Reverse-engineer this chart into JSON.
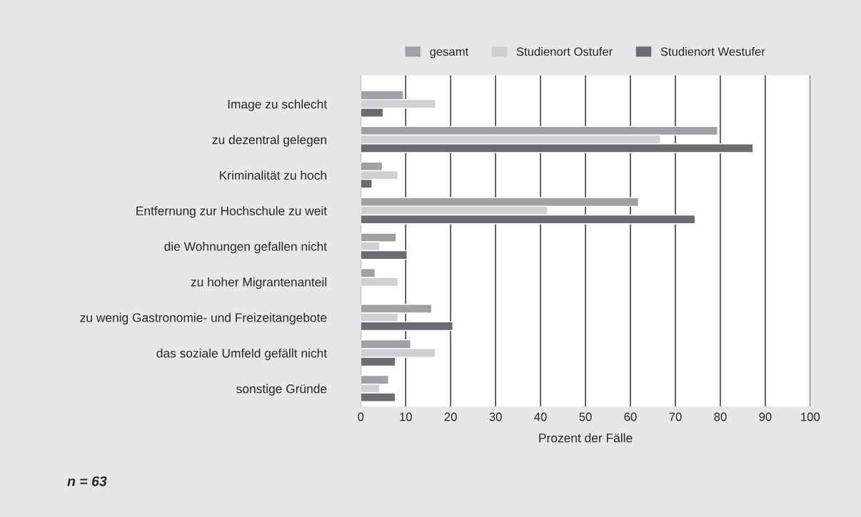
{
  "chart_data": {
    "type": "bar",
    "orientation": "horizontal",
    "categories": [
      "Image zu schlecht",
      "zu dezentral gelegen",
      "Kriminalität zu hoch",
      "Entfernung zur Hochschule zu weit",
      "die Wohnungen gefallen nicht",
      "zu hoher Migrantenanteil",
      "zu wenig Gastronomie- und Freizeitangebote",
      "das soziale Umfeld gefällt nicht",
      "sonstige Gründe"
    ],
    "series": [
      {
        "name": "gesamt",
        "color": "#a0a1a5",
        "values": [
          9.5,
          79.4,
          4.8,
          61.8,
          7.9,
          3.2,
          15.8,
          11.1,
          6.2
        ]
      },
      {
        "name": "Studienort Ostufer",
        "color": "#cfd0d2",
        "values": [
          16.6,
          66.7,
          8.3,
          41.6,
          4.2,
          8.3,
          8.3,
          16.6,
          4.2
        ]
      },
      {
        "name": "Studienort Westufer",
        "color": "#6b6c71",
        "values": [
          5.0,
          87.3,
          2.5,
          74.4,
          10.3,
          null,
          20.5,
          7.7,
          7.7
        ]
      }
    ],
    "xlabel": "Prozent der Fälle",
    "xlim": [
      0,
      100
    ],
    "xticks": [
      0,
      10,
      20,
      30,
      40,
      50,
      60,
      70,
      80,
      90,
      100
    ],
    "grid": "x",
    "legend": "top",
    "annotations": [
      "n = 63"
    ]
  }
}
